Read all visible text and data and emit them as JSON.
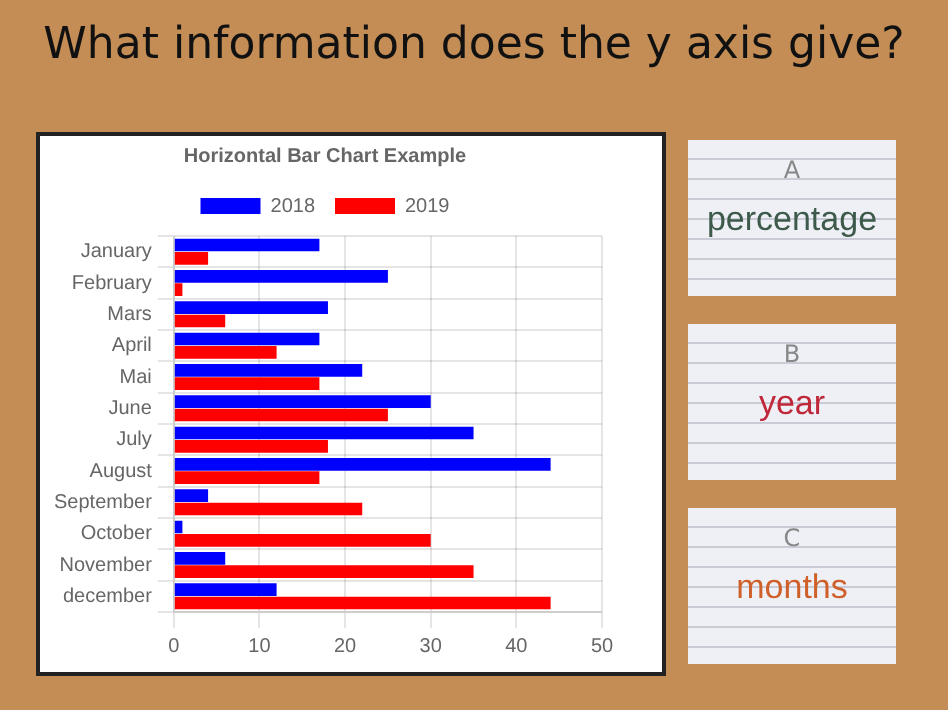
{
  "chart_data": [
    {
      "type": "bar",
      "orientation": "horizontal",
      "title": "Horizontal Bar Chart Example",
      "categories": [
        "January",
        "February",
        "Mars",
        "April",
        "Mai",
        "June",
        "July",
        "August",
        "September",
        "October",
        "November",
        "december"
      ],
      "series": [
        {
          "name": "2018",
          "color": "#0000ff",
          "values": [
            17,
            25,
            18,
            17,
            22,
            30,
            35,
            44,
            4,
            1,
            6,
            12
          ]
        },
        {
          "name": "2019",
          "color": "#ff0000",
          "values": [
            4,
            1,
            6,
            12,
            17,
            25,
            18,
            17,
            22,
            30,
            35,
            44
          ]
        }
      ],
      "xlim": [
        0,
        50
      ],
      "xticks": [
        0,
        10,
        20,
        30,
        40,
        50
      ],
      "grid": true,
      "legend": "top"
    },
    {
      "type": "other",
      "title": "What information does the y axis give?",
      "annotations": [
        "A",
        "percentage",
        "B",
        "year",
        "C",
        "months"
      ]
    }
  ]
}
